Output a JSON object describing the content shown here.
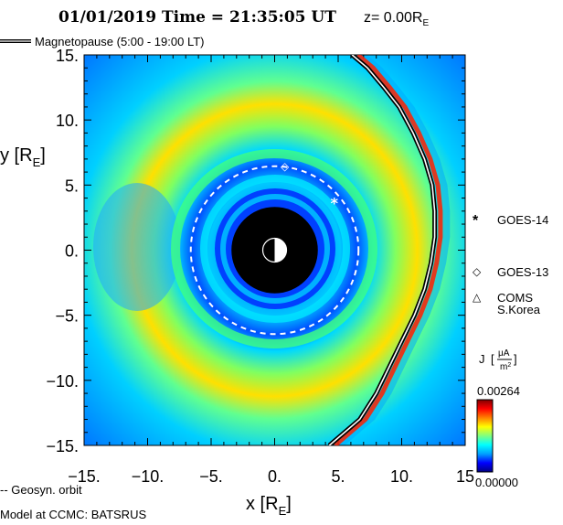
{
  "chart_data": {
    "type": "heatmap",
    "title": {
      "date": "01/01/2019",
      "time_prefix": "Time =",
      "time": "21:35:05",
      "time_unit": "UT",
      "z_text": "z= 0.00R",
      "z_subscript": "E"
    },
    "magnetopause_legend": "Magnetopause (5:00 - 19:00 LT)",
    "xlabel": "x [R",
    "ylabel": "y [R",
    "label_subscript": "E",
    "label_close": "]",
    "xlim": [
      -15,
      15
    ],
    "ylim": [
      -15,
      15
    ],
    "x_ticks": [
      -15,
      -10,
      -5,
      0,
      5,
      10,
      15
    ],
    "x_tick_labels": [
      "−15.",
      "−10.",
      "−5.",
      "0.",
      "5.",
      "10.",
      "15"
    ],
    "y_ticks": [
      15,
      10,
      5,
      0,
      -5,
      -10,
      -15
    ],
    "y_tick_labels": [
      "15.",
      "10.",
      "5.",
      "0.",
      "−5.",
      "−10.",
      "−15."
    ],
    "earth_radius": 3.4,
    "geosync_radius": 6.6,
    "geosync_label": "-- Geosyn. orbit",
    "model_label": "Model at CCMC: BATSRUS",
    "satellites": [
      {
        "name": "GOES-14",
        "symbol": "*",
        "x": 4.7,
        "y": 3.6
      },
      {
        "name": "GOES-13",
        "symbol": "◇",
        "x": 0.8,
        "y": 6.5
      },
      {
        "name": "COMS",
        "name2": "S.Korea",
        "symbol": "△"
      }
    ],
    "magnetopause": [
      [
        6.1,
        15.0
      ],
      [
        7.3,
        14.0
      ],
      [
        8.6,
        12.5
      ],
      [
        9.8,
        11.0
      ],
      [
        10.9,
        9.0
      ],
      [
        11.8,
        7.0
      ],
      [
        12.4,
        5.0
      ],
      [
        12.6,
        3.0
      ],
      [
        12.6,
        1.0
      ],
      [
        12.3,
        -1.0
      ],
      [
        11.8,
        -3.0
      ],
      [
        11.0,
        -5.0
      ],
      [
        10.0,
        -7.0
      ],
      [
        9.0,
        -9.0
      ],
      [
        8.0,
        -11.0
      ],
      [
        6.7,
        -13.0
      ],
      [
        4.3,
        -15.0
      ]
    ],
    "colorbar": {
      "label": "J",
      "unit_num": "μA",
      "unit_den": "m",
      "unit_den_sup": "2",
      "max_label": "0.00264",
      "min_label": "0.00000",
      "max_value": 0.00264,
      "min_value": 0.0,
      "colors": [
        "#000083",
        "#0000ff",
        "#00a0ff",
        "#00ffff",
        "#80ff80",
        "#ffff00",
        "#ff8000",
        "#ff0000",
        "#800000"
      ]
    }
  }
}
